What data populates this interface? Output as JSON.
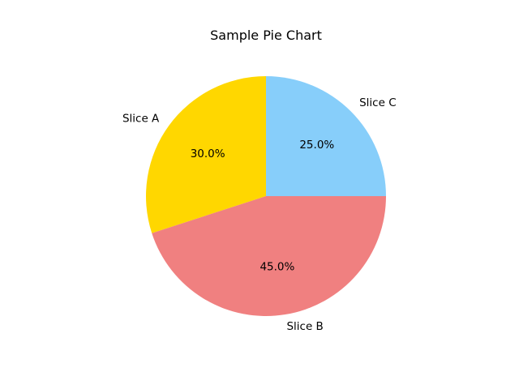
{
  "chart_data": {
    "type": "pie",
    "title": "Sample Pie Chart",
    "slices": [
      {
        "label": "Slice A",
        "value": 30,
        "percent_label": "30.0%",
        "color": "#FFD700"
      },
      {
        "label": "Slice B",
        "value": 45,
        "percent_label": "45.0%",
        "color": "#F08080"
      },
      {
        "label": "Slice C",
        "value": 25,
        "percent_label": "25.0%",
        "color": "#87CEFA"
      }
    ],
    "start_angle_deg": 90,
    "direction": "counterclockwise",
    "legend": "none"
  }
}
